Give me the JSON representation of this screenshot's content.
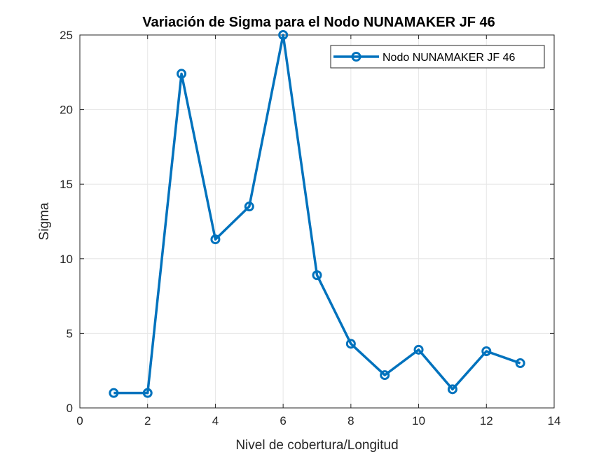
{
  "chart_data": {
    "type": "line",
    "title": "Variación de Sigma para el Nodo NUNAMAKER JF 46",
    "xlabel": "Nivel de cobertura/Longitud",
    "ylabel": "Sigma",
    "xlim": [
      0,
      14
    ],
    "ylim": [
      0,
      25
    ],
    "xticks": [
      "0",
      "2",
      "4",
      "6",
      "8",
      "10",
      "12",
      "14"
    ],
    "yticks": [
      "0",
      "5",
      "10",
      "15",
      "20",
      "25"
    ],
    "grid": true,
    "legend_position": "top-right",
    "series": [
      {
        "name": "Nodo NUNAMAKER JF 46",
        "color": "#0072BD",
        "marker": "circle",
        "x": [
          1,
          2,
          3,
          4,
          5,
          6,
          7,
          8,
          9,
          10,
          11,
          12,
          13
        ],
        "y": [
          1.0,
          1.0,
          22.4,
          11.3,
          13.5,
          25.0,
          8.9,
          4.3,
          2.2,
          3.9,
          1.25,
          3.8,
          3.0
        ]
      }
    ]
  }
}
